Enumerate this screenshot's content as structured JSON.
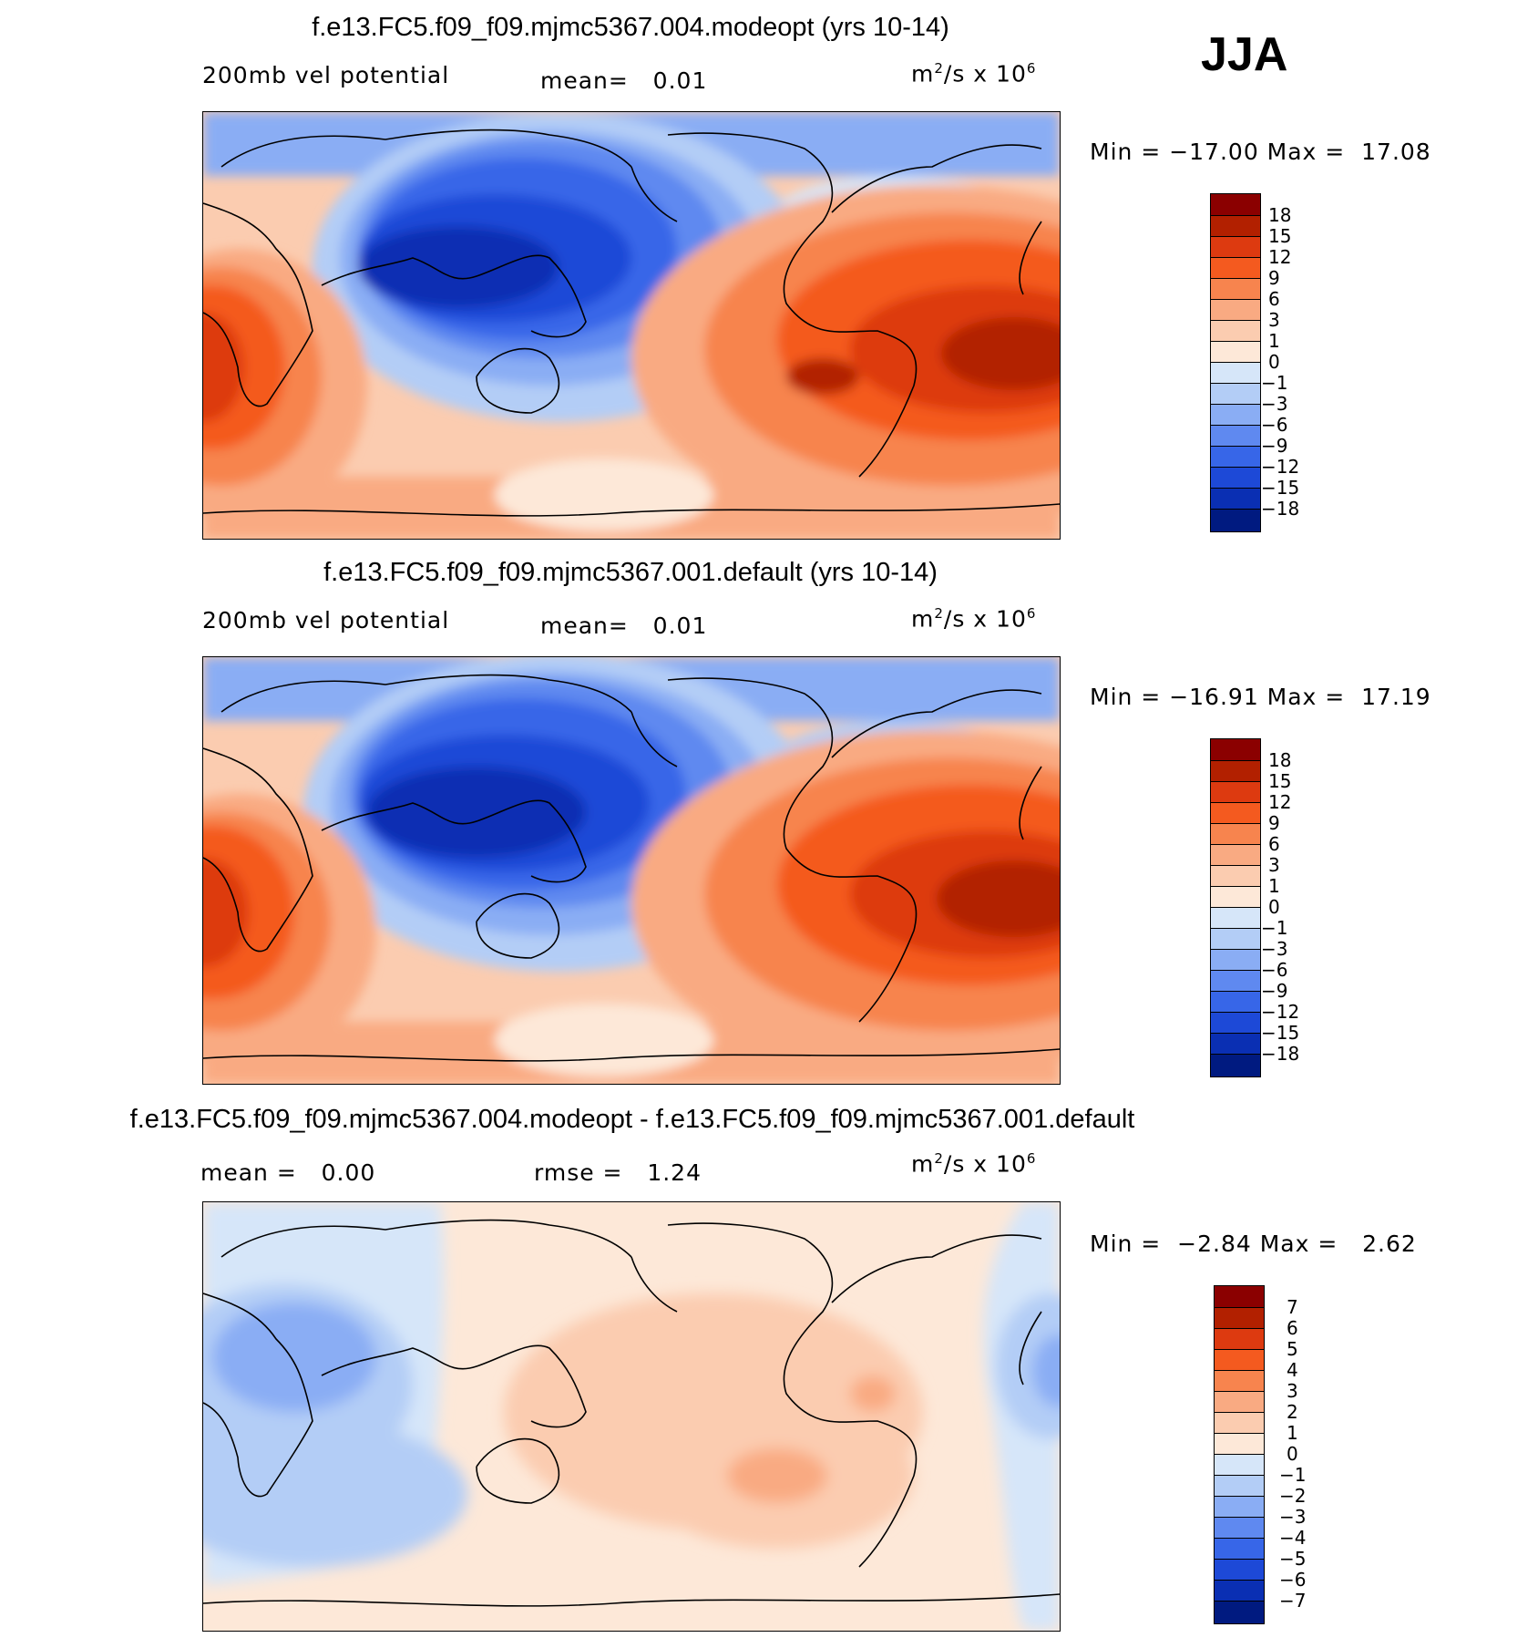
{
  "season": "JJA",
  "panels": [
    {
      "title": "f.e13.FC5.f09_f09.mjmc5367.004.modeopt (yrs 10-14)",
      "left_label": "200mb vel potential",
      "mid_label": "mean=   0.01",
      "unit_base": "m",
      "unit_exp": "2",
      "unit_rest": "/s x 10",
      "unit_exp2": "6",
      "minmax": "Min = −17.00 Max =  17.08"
    },
    {
      "title": "f.e13.FC5.f09_f09.mjmc5367.001.default (yrs 10-14)",
      "left_label": "200mb vel potential",
      "mid_label": "mean=   0.01",
      "unit_base": "m",
      "unit_exp": "2",
      "unit_rest": "/s x 10",
      "unit_exp2": "6",
      "minmax": "Min = −16.91 Max =  17.19"
    },
    {
      "title": "f.e13.FC5.f09_f09.mjmc5367.004.modeopt - f.e13.FC5.f09_f09.mjmc5367.001.default",
      "left_label": "mean =   0.00",
      "mid_label": "rmse =   1.24",
      "unit_base": "m",
      "unit_exp": "2",
      "unit_rest": "/s x 10",
      "unit_exp2": "6",
      "minmax": "Min =  −2.84 Max =   2.62"
    }
  ],
  "colorbar_main": {
    "labels": [
      "18",
      "15",
      "12",
      "9",
      "6",
      "3",
      "1",
      "0",
      "−1",
      "−3",
      "−6",
      "−9",
      "−12",
      "−15",
      "−18"
    ],
    "colors": [
      "#8b0000",
      "#b22000",
      "#dd3a10",
      "#f45a1f",
      "#f7844e",
      "#f9aa82",
      "#fbccb0",
      "#fde8d8",
      "#d6e6f9",
      "#b3cdf6",
      "#8aadf4",
      "#5f89f0",
      "#3766e8",
      "#1d49d7",
      "#0a2fb3",
      "#001a80"
    ]
  },
  "colorbar_diff": {
    "labels": [
      "7",
      "6",
      "5",
      "4",
      "3",
      "2",
      "1",
      "0",
      "−1",
      "−2",
      "−3",
      "−4",
      "−5",
      "−6",
      "−7"
    ],
    "colors": [
      "#8b0000",
      "#b22000",
      "#dd3a10",
      "#f45a1f",
      "#f7844e",
      "#f9aa82",
      "#fbccb0",
      "#fde8d8",
      "#d6e6f9",
      "#b3cdf6",
      "#8aadf4",
      "#5f89f0",
      "#3766e8",
      "#1d49d7",
      "#0a2fb3",
      "#001a80"
    ]
  },
  "chart_data": [
    {
      "type": "heatmap",
      "title": "f.e13.FC5.f09_f09.mjmc5367.004.modeopt (yrs 10-14)",
      "variable": "200mb vel potential",
      "units": "m^2/s x 10^6",
      "mean": 0.01,
      "min": -17.0,
      "max": 17.08,
      "season": "JJA",
      "levels": [
        -18,
        -15,
        -12,
        -9,
        -6,
        -3,
        -1,
        0,
        1,
        3,
        6,
        9,
        12,
        15,
        18
      ],
      "projection": "cylindrical equidistant, centered on Pacific",
      "pattern": "negative center over Asian monsoon/western Pacific; positive over Africa and South America/Atlantic"
    },
    {
      "type": "heatmap",
      "title": "f.e13.FC5.f09_f09.mjmc5367.001.default (yrs 10-14)",
      "variable": "200mb vel potential",
      "units": "m^2/s x 10^6",
      "mean": 0.01,
      "min": -16.91,
      "max": 17.19,
      "season": "JJA",
      "levels": [
        -18,
        -15,
        -12,
        -9,
        -6,
        -3,
        -1,
        0,
        1,
        3,
        6,
        9,
        12,
        15,
        18
      ]
    },
    {
      "type": "heatmap",
      "title": "f.e13.FC5.f09_f09.mjmc5367.004.modeopt - f.e13.FC5.f09_f09.mjmc5367.001.default",
      "units": "m^2/s x 10^6",
      "mean": 0.0,
      "rmse": 1.24,
      "min": -2.84,
      "max": 2.62,
      "season": "JJA",
      "levels": [
        -7,
        -6,
        -5,
        -4,
        -3,
        -2,
        -1,
        0,
        1,
        2,
        3,
        4,
        5,
        6,
        7
      ]
    }
  ]
}
